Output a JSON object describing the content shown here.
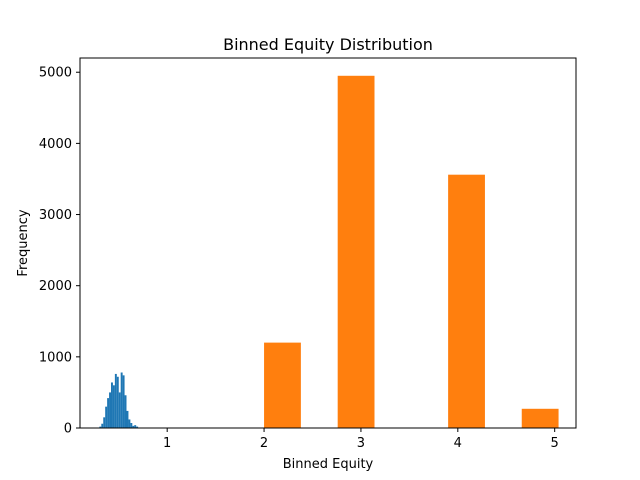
{
  "chart_data": {
    "type": "bar",
    "title": "Binned Equity Distribution",
    "xlabel": "Binned Equity",
    "ylabel": "Frequency",
    "xlim": [
      0.1,
      5.22
    ],
    "ylim": [
      0,
      5200
    ],
    "xticks": [
      1,
      2,
      3,
      4,
      5
    ],
    "yticks": [
      0,
      1000,
      2000,
      3000,
      4000,
      5000
    ],
    "legend": "none",
    "grid": false,
    "series": [
      {
        "color": "#1f77b4",
        "bars": [
          {
            "x0": 0.3,
            "x1": 0.32,
            "value": 20
          },
          {
            "x0": 0.32,
            "x1": 0.34,
            "value": 60
          },
          {
            "x0": 0.34,
            "x1": 0.36,
            "value": 150
          },
          {
            "x0": 0.36,
            "x1": 0.38,
            "value": 300
          },
          {
            "x0": 0.38,
            "x1": 0.4,
            "value": 420
          },
          {
            "x0": 0.4,
            "x1": 0.42,
            "value": 500
          },
          {
            "x0": 0.42,
            "x1": 0.44,
            "value": 640
          },
          {
            "x0": 0.44,
            "x1": 0.46,
            "value": 600
          },
          {
            "x0": 0.46,
            "x1": 0.48,
            "value": 760
          },
          {
            "x0": 0.48,
            "x1": 0.5,
            "value": 720
          },
          {
            "x0": 0.5,
            "x1": 0.52,
            "value": 500
          },
          {
            "x0": 0.52,
            "x1": 0.54,
            "value": 780
          },
          {
            "x0": 0.54,
            "x1": 0.56,
            "value": 740
          },
          {
            "x0": 0.56,
            "x1": 0.58,
            "value": 460
          },
          {
            "x0": 0.58,
            "x1": 0.6,
            "value": 240
          },
          {
            "x0": 0.6,
            "x1": 0.62,
            "value": 120
          },
          {
            "x0": 0.62,
            "x1": 0.64,
            "value": 70
          },
          {
            "x0": 0.64,
            "x1": 0.66,
            "value": 30
          },
          {
            "x0": 0.66,
            "x1": 0.68,
            "value": 40
          },
          {
            "x0": 0.68,
            "x1": 0.7,
            "value": 20
          }
        ]
      },
      {
        "color": "#ff7f0e",
        "bars": [
          {
            "x0": 1.0,
            "x1": 1.38,
            "value": 0
          },
          {
            "x0": 1.0,
            "x1": 1.38,
            "value": 0
          },
          {
            "x0": 2.0,
            "x1": 2.38,
            "value": 1200
          },
          {
            "x0": 2.76,
            "x1": 3.14,
            "value": 4950
          },
          {
            "x0": 3.9,
            "x1": 4.28,
            "value": 3560
          },
          {
            "x0": 4.66,
            "x1": 5.04,
            "value": 270
          }
        ]
      }
    ]
  }
}
